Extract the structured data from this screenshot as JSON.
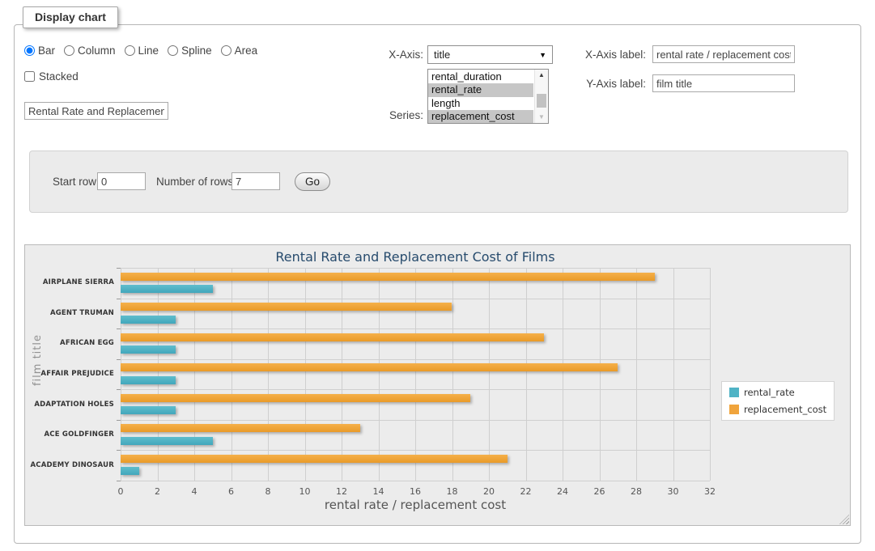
{
  "panel": {
    "legend": "Display chart"
  },
  "form": {
    "chart_type_options": [
      {
        "label": "Bar",
        "selected": true
      },
      {
        "label": "Column",
        "selected": false
      },
      {
        "label": "Line",
        "selected": false
      },
      {
        "label": "Spline",
        "selected": false
      },
      {
        "label": "Area",
        "selected": false
      }
    ],
    "stacked": {
      "label": "Stacked",
      "checked": false
    },
    "title_input": {
      "value": "Rental Rate and Replacement Cost of Films"
    },
    "x_axis": {
      "label": "X-Axis:",
      "selected": "title"
    },
    "series": {
      "label": "Series:",
      "options": [
        {
          "label": "rental_duration",
          "selected": false
        },
        {
          "label": "rental_rate",
          "selected": true
        },
        {
          "label": "length",
          "selected": false
        },
        {
          "label": "replacement_cost",
          "selected": true
        }
      ]
    },
    "x_axis_label": {
      "label": "X-Axis label:",
      "value": "rental rate / replacement cost"
    },
    "y_axis_label": {
      "label": "Y-Axis label:",
      "value": "film title"
    },
    "row_controls": {
      "start_row_label": "Start row:",
      "start_row_value": "0",
      "num_rows_label": "Number of rows:",
      "num_rows_value": "7",
      "go_label": "Go"
    }
  },
  "chart_data": {
    "type": "bar",
    "orientation": "horizontal",
    "title": "Rental Rate and Replacement Cost of Films",
    "categories": [
      "AIRPLANE SIERRA",
      "AGENT TRUMAN",
      "AFRICAN EGG",
      "AFFAIR PREJUDICE",
      "ADAPTATION HOLES",
      "ACE GOLDFINGER",
      "ACADEMY DINOSAUR"
    ],
    "series": [
      {
        "name": "rental_rate",
        "color": "#4FB3C5",
        "color_light": "#60bdcd",
        "color_dark": "#41a7bb",
        "values": [
          4.99,
          2.99,
          2.99,
          2.99,
          2.99,
          4.99,
          0.99
        ]
      },
      {
        "name": "replacement_cost",
        "color": "#F0A43C",
        "color_light": "#f5b04a",
        "color_dark": "#e99a28",
        "values": [
          28.99,
          17.99,
          22.99,
          26.99,
          18.99,
          12.99,
          20.99
        ]
      }
    ],
    "group_order_top_to_bottom": [
      "replacement_cost",
      "rental_rate"
    ],
    "xlabel": "rental rate / replacement cost",
    "ylabel": "film title",
    "xlim": [
      0,
      32
    ],
    "xtick_step": 2,
    "grid": true,
    "legend_position": "right",
    "colors": {
      "title": "#274b6d",
      "grid": "#cfcfcf",
      "background": "#ececec"
    }
  }
}
